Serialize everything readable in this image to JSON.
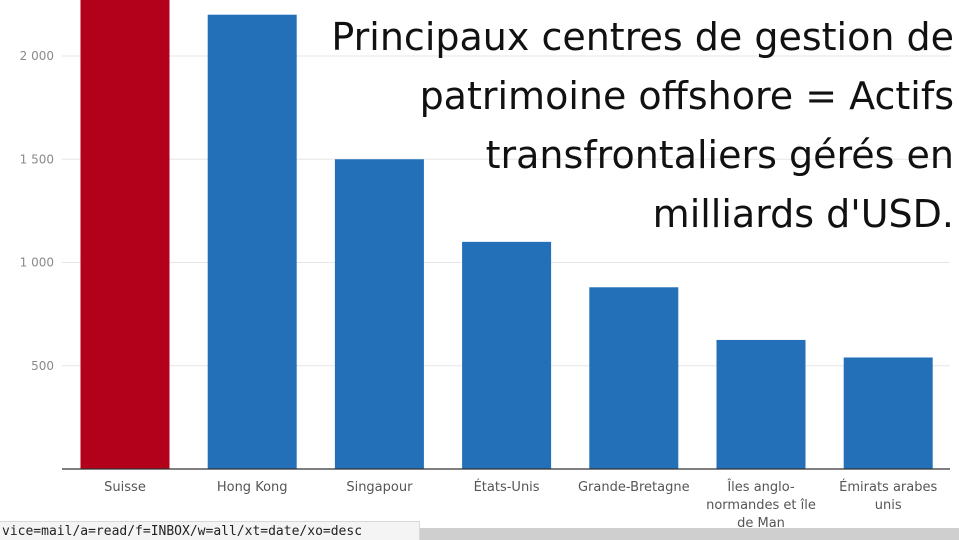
{
  "chart_data": {
    "type": "bar",
    "title": "Principaux centres de gestion de\npatrimoine offshore = Actifs\ntransfrontaliers gérés en\nmilliards d'USD.",
    "categories": [
      "Suisse",
      "Hong Kong",
      "Singapour",
      "États-Unis",
      "Grande-Bretagne",
      "Îles anglo-\nnormandes et île\nde Man",
      "Émirats arabes\nunis"
    ],
    "values": [
      2400,
      2200,
      1500,
      1100,
      880,
      625,
      540
    ],
    "colors": [
      "#b3001b",
      "#2370b8",
      "#2370b8",
      "#2370b8",
      "#2370b8",
      "#2370b8",
      "#2370b8"
    ],
    "yticks": [
      500,
      1000,
      1500,
      2000
    ],
    "ytick_labels": [
      "500",
      "1 000",
      "1 500",
      "2 000"
    ],
    "ylim": [
      0,
      2270
    ],
    "grid": true
  },
  "statusbar": {
    "text": "vice=mail/a=read/f=INBOX/w=all/xt=date/xo=desc"
  }
}
